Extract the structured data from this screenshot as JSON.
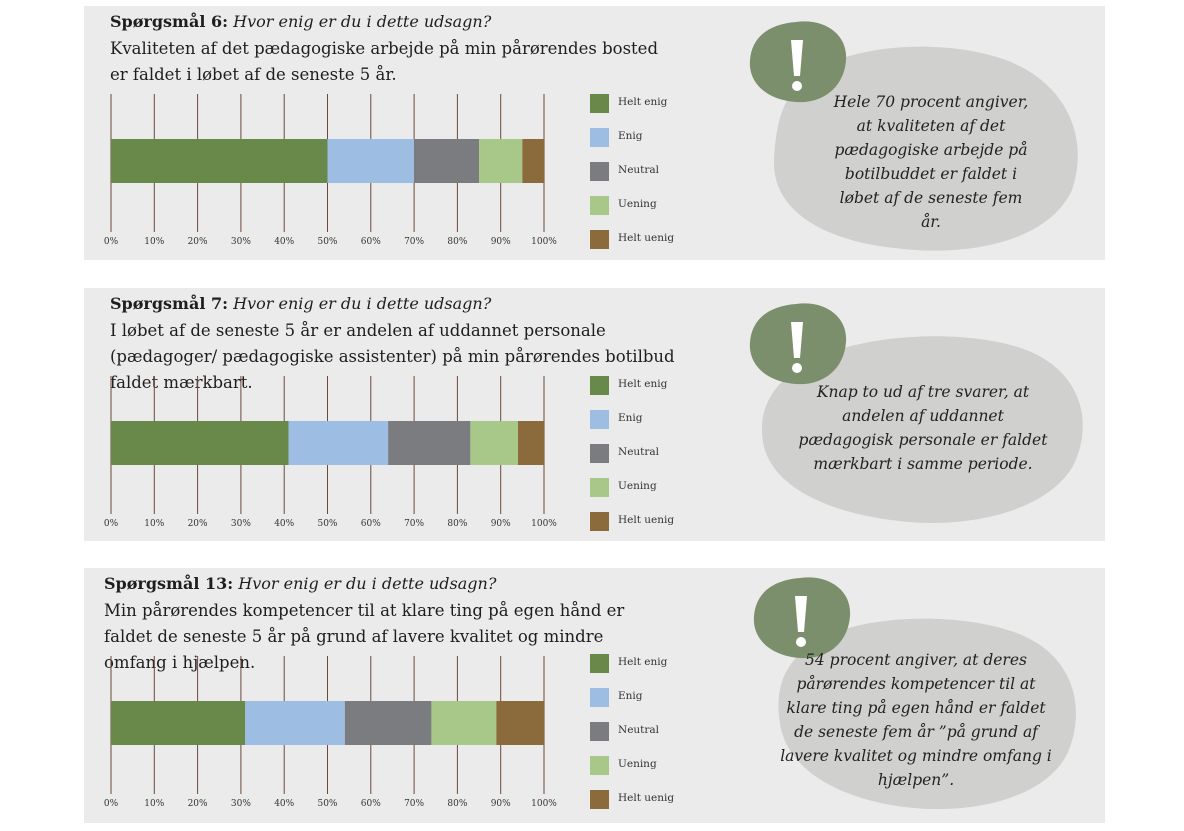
{
  "colors": {
    "Helt enig": "#68894a",
    "Enig": "#9dbde3",
    "Neutral": "#7a7c80",
    "Uening": "#a8c88a",
    "Helt uenig": "#8b6a3c",
    "panel": "#ebebeb",
    "bubble": "#d0d0cf",
    "badge": "#7c8f6c"
  },
  "icon": "exclamation-icon",
  "questions": [
    {
      "title_bold": "Spørgsmål 6:",
      "title_italic": "Hvor enig er du i dette udsagn?",
      "text": "Kvaliteten af det pædagogiske arbejde på min pårørendes bosted er faldet i løbet af de seneste 5 år.",
      "callout": "Hele 70 procent angiver, at kvaliteten af det pædago­giske arbejde på botilbuddet er faldet i løbet af de seneste fem år."
    },
    {
      "title_bold": "Spørgsmål 7:",
      "title_italic": "Hvor enig er du i dette udsagn?",
      "text": "I løbet af de seneste 5 år er andelen af uddannet personale (pædagoger/ pædagogiske assistenter) på min pårørendes botilbud faldet mærkbart.",
      "callout": "Knap to ud af tre svarer, at andelen af uddannet pædagogisk personale er faldet mærkbart i samme periode."
    },
    {
      "title_bold": "Spørgsmål 13:",
      "title_italic": "Hvor enig er du i dette udsagn?",
      "text": "Min pårørendes kompetencer til at klare ting på egen hånd er faldet de seneste 5 år på grund af lavere kvalitet og mindre omfang i hjælpen.",
      "callout": "54 procent angiver, at deres pårørendes kompetencer til at klare ting på egen hånd er faldet de seneste fem år ”på grund af lavere kvalitet og mindre omfang i hjælpen”."
    }
  ],
  "chart_data": [
    {
      "type": "bar",
      "orientation": "horizontal-stacked",
      "categories": [
        "Spørgsmål 6"
      ],
      "series": [
        {
          "name": "Helt enig",
          "values": [
            50
          ]
        },
        {
          "name": "Enig",
          "values": [
            20
          ]
        },
        {
          "name": "Neutral",
          "values": [
            15
          ]
        },
        {
          "name": "Uening",
          "values": [
            10
          ]
        },
        {
          "name": "Helt uenig",
          "values": [
            5
          ]
        }
      ],
      "xticks": [
        "0%",
        "10%",
        "20%",
        "30%",
        "40%",
        "50%",
        "60%",
        "70%",
        "80%",
        "90%",
        "100%"
      ],
      "xlim": [
        0,
        100
      ],
      "grid": true,
      "legend": "right"
    },
    {
      "type": "bar",
      "orientation": "horizontal-stacked",
      "categories": [
        "Spørgsmål 7"
      ],
      "series": [
        {
          "name": "Helt enig",
          "values": [
            41
          ]
        },
        {
          "name": "Enig",
          "values": [
            23
          ]
        },
        {
          "name": "Neutral",
          "values": [
            19
          ]
        },
        {
          "name": "Uening",
          "values": [
            11
          ]
        },
        {
          "name": "Helt uenig",
          "values": [
            6
          ]
        }
      ],
      "xticks": [
        "0%",
        "10%",
        "20%",
        "30%",
        "40%",
        "50%",
        "60%",
        "70%",
        "80%",
        "90%",
        "100%"
      ],
      "xlim": [
        0,
        100
      ],
      "grid": true,
      "legend": "right"
    },
    {
      "type": "bar",
      "orientation": "horizontal-stacked",
      "categories": [
        "Spørgsmål 13"
      ],
      "series": [
        {
          "name": "Helt enig",
          "values": [
            31
          ]
        },
        {
          "name": "Enig",
          "values": [
            23
          ]
        },
        {
          "name": "Neutral",
          "values": [
            20
          ]
        },
        {
          "name": "Uening",
          "values": [
            15
          ]
        },
        {
          "name": "Helt uenig",
          "values": [
            11
          ]
        }
      ],
      "xticks": [
        "0%",
        "10%",
        "20%",
        "30%",
        "40%",
        "50%",
        "60%",
        "70%",
        "80%",
        "90%",
        "100%"
      ],
      "xlim": [
        0,
        100
      ],
      "grid": true,
      "legend": "right"
    }
  ]
}
